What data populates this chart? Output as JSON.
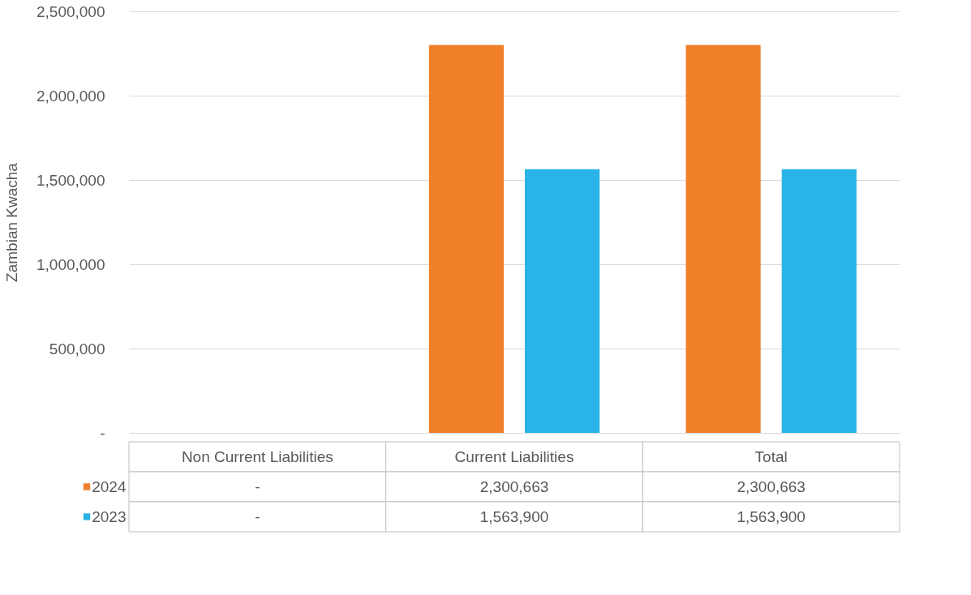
{
  "chart_data": {
    "type": "bar",
    "ylabel": "Zambian Kwacha",
    "categories": [
      "Non Current Liabilities",
      "Current Liabilities",
      "Total"
    ],
    "series": [
      {
        "name": "2024",
        "color": "#f07f2a",
        "values": [
          0,
          2300663,
          2300663
        ],
        "value_labels": [
          "-",
          "2,300,663",
          "2,300,663"
        ]
      },
      {
        "name": "2023",
        "color": "#29b3e6",
        "values": [
          0,
          1563900,
          1563900
        ],
        "value_labels": [
          "-",
          "1,563,900",
          "1,563,900"
        ]
      }
    ],
    "ylim": [
      0,
      2500000
    ],
    "yticks": [
      {
        "value": 0,
        "label": "-"
      },
      {
        "value": 500000,
        "label": "500,000"
      },
      {
        "value": 1000000,
        "label": "1,000,000"
      },
      {
        "value": 1500000,
        "label": "1,500,000"
      },
      {
        "value": 2000000,
        "label": "2,000,000"
      },
      {
        "value": 2500000,
        "label": "2,500,000"
      }
    ],
    "grid": "y",
    "legend": "bottom"
  }
}
